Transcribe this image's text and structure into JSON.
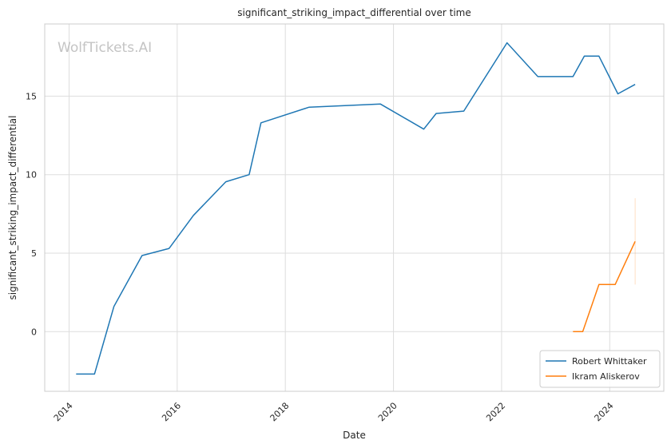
{
  "chart_data": {
    "type": "line",
    "title": "significant_striking_impact_differential over time",
    "xlabel": "Date",
    "ylabel": "significant_striking_impact_differential",
    "watermark": "WolfTickets.AI",
    "xlim": [
      2013.55,
      2025.0
    ],
    "ylim": [
      -3.8,
      19.6
    ],
    "xticks": [
      2014,
      2016,
      2018,
      2020,
      2022,
      2024
    ],
    "xtick_labels": [
      "2014",
      "2016",
      "2018",
      "2020",
      "2022",
      "2024"
    ],
    "yticks": [
      0,
      5,
      10,
      15
    ],
    "ytick_labels": [
      "0",
      "5",
      "10",
      "15"
    ],
    "grid": true,
    "legend_position": "bottom-right",
    "series": [
      {
        "name": "Robert Whittaker",
        "color": "#1f77b4",
        "x": [
          2014.13,
          2014.47,
          2014.83,
          2015.35,
          2015.85,
          2016.3,
          2016.9,
          2017.33,
          2017.55,
          2018.44,
          2019.76,
          2020.56,
          2020.79,
          2021.3,
          2022.1,
          2022.67,
          2023.32,
          2023.53,
          2023.8,
          2024.15,
          2024.47
        ],
        "y": [
          -2.7,
          -2.7,
          1.6,
          4.85,
          5.3,
          7.4,
          9.55,
          10.0,
          13.3,
          14.3,
          14.5,
          12.9,
          13.9,
          14.05,
          18.4,
          16.25,
          16.25,
          17.55,
          17.55,
          15.15,
          15.75
        ]
      },
      {
        "name": "Ikram Aliskerov",
        "color": "#ff7f0e",
        "x": [
          2023.32,
          2023.5,
          2023.8,
          2024.1,
          2024.47
        ],
        "y": [
          0.0,
          0.0,
          3.0,
          3.0,
          5.75
        ],
        "error_band": {
          "x": 2024.47,
          "low": 3.0,
          "high": 8.5
        }
      }
    ]
  }
}
